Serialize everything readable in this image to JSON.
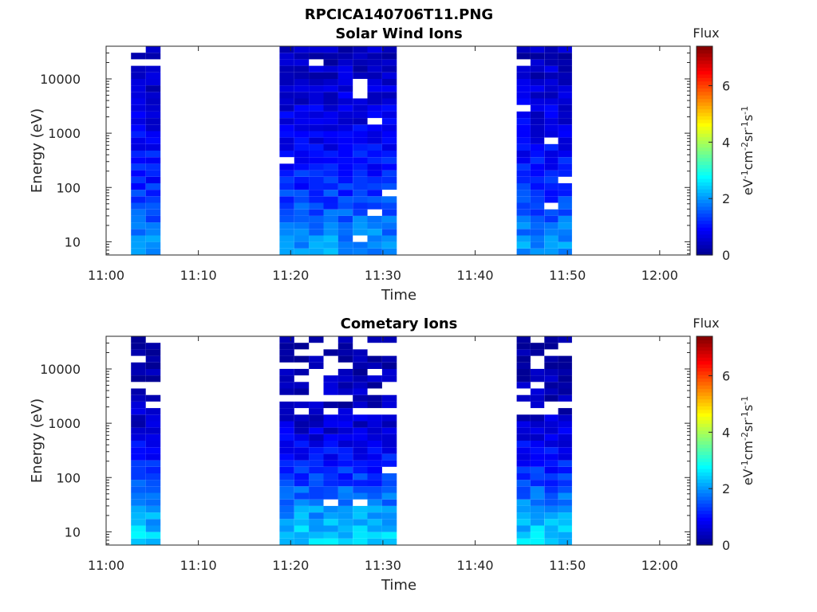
{
  "figure_title": "RPCICA140706T11.PNG",
  "colors": {
    "colormap": [
      "#00008f",
      "#0000ff",
      "#0080ff",
      "#00ffff",
      "#80ff80",
      "#ffff00",
      "#ff8000",
      "#ff0000",
      "#800000"
    ],
    "axis": "#262626",
    "background": "#ffffff"
  },
  "chart_data": [
    {
      "type": "heatmap",
      "title": "Solar Wind Ions",
      "xlabel": "Time",
      "ylabel": "Energy (eV)",
      "x_tick_labels": [
        "11:00",
        "11:10",
        "11:20",
        "11:30",
        "11:40",
        "11:50",
        "12:00"
      ],
      "x_tick_minutes": [
        0,
        10,
        20,
        30,
        40,
        50,
        60
      ],
      "xlim_minutes": [
        0,
        63.3
      ],
      "y_scale": "log",
      "y_tick_labels": [
        "10",
        "100",
        "1000",
        "10000"
      ],
      "y_tick_values": [
        10,
        100,
        1000,
        10000
      ],
      "ylim": [
        5.7,
        40000
      ],
      "colorbar": {
        "label": "Flux",
        "unit_label": "eV-1cm-2sr-1s-1",
        "tick_labels": [
          "0",
          "2",
          "4",
          "6"
        ],
        "tick_values": [
          0,
          2,
          4,
          6
        ],
        "range": [
          0,
          7.4
        ]
      },
      "data_intervals": [
        {
          "start": "11:02:40",
          "end": "11:05:50",
          "start_min": 2.7,
          "end_min": 5.9,
          "time_bins": 2
        },
        {
          "start": "11:18:50",
          "end": "11:31:30",
          "start_min": 18.8,
          "end_min": 31.5,
          "time_bins": 8
        },
        {
          "start": "11:44:30",
          "end": "11:50:30",
          "start_min": 44.5,
          "end_min": 50.5,
          "time_bins": 4
        }
      ],
      "flux_vs_energy_typical": [
        {
          "energy_eV": 10,
          "flux": 2.0
        },
        {
          "energy_eV": 30,
          "flux": 1.6
        },
        {
          "energy_eV": 100,
          "flux": 1.2
        },
        {
          "energy_eV": 1000,
          "flux": 0.8
        },
        {
          "energy_eV": 10000,
          "flux": 0.5
        },
        {
          "energy_eV": 35000,
          "flux": 0.4
        }
      ]
    },
    {
      "type": "heatmap",
      "title": "Cometary Ions",
      "xlabel": "Time",
      "ylabel": "Energy (eV)",
      "x_tick_labels": [
        "11:00",
        "11:10",
        "11:20",
        "11:30",
        "11:40",
        "11:50",
        "12:00"
      ],
      "x_tick_minutes": [
        0,
        10,
        20,
        30,
        40,
        50,
        60
      ],
      "xlim_minutes": [
        0,
        63.3
      ],
      "y_scale": "log",
      "y_tick_labels": [
        "10",
        "100",
        "1000",
        "10000"
      ],
      "y_tick_values": [
        10,
        100,
        1000,
        10000
      ],
      "ylim": [
        5.7,
        40000
      ],
      "colorbar": {
        "label": "Flux",
        "unit_label": "eV-1cm-2sr-1s-1",
        "tick_labels": [
          "0",
          "2",
          "4",
          "6"
        ],
        "tick_values": [
          0,
          2,
          4,
          6
        ],
        "range": [
          0,
          7.4
        ]
      },
      "data_intervals": [
        {
          "start": "11:02:40",
          "end": "11:05:50",
          "start_min": 2.7,
          "end_min": 5.9,
          "time_bins": 2
        },
        {
          "start": "11:18:50",
          "end": "11:31:30",
          "start_min": 18.8,
          "end_min": 31.5,
          "time_bins": 8
        },
        {
          "start": "11:44:30",
          "end": "11:50:30",
          "start_min": 44.5,
          "end_min": 50.5,
          "time_bins": 4
        }
      ],
      "flux_vs_energy_typical": [
        {
          "energy_eV": 10,
          "flux": 2.4
        },
        {
          "energy_eV": 30,
          "flux": 1.9
        },
        {
          "energy_eV": 100,
          "flux": 1.3
        },
        {
          "energy_eV": 1000,
          "flux": 0.5
        },
        {
          "energy_eV": 10000,
          "flux": 0.2
        },
        {
          "energy_eV": 35000,
          "flux": 0.1
        }
      ]
    }
  ]
}
